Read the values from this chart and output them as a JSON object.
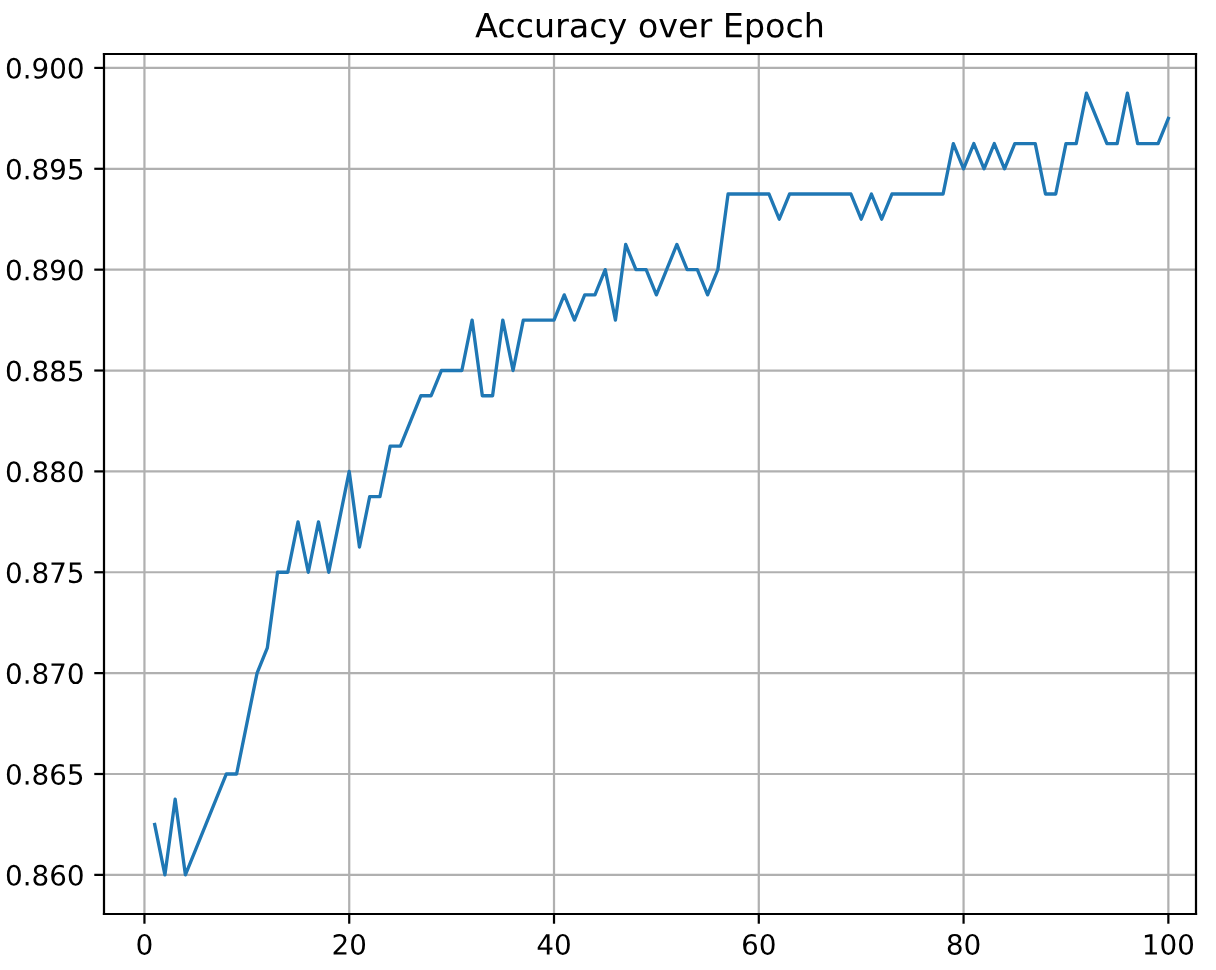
{
  "chart_data": {
    "type": "line",
    "title": "Accuracy over Epoch",
    "x": [
      1,
      2,
      3,
      4,
      5,
      6,
      7,
      8,
      9,
      10,
      11,
      12,
      13,
      14,
      15,
      16,
      17,
      18,
      19,
      20,
      21,
      22,
      23,
      24,
      25,
      26,
      27,
      28,
      29,
      30,
      31,
      32,
      33,
      34,
      35,
      36,
      37,
      38,
      39,
      40,
      41,
      42,
      43,
      44,
      45,
      46,
      47,
      48,
      49,
      50,
      51,
      52,
      53,
      54,
      55,
      56,
      57,
      58,
      59,
      60,
      61,
      62,
      63,
      64,
      65,
      66,
      67,
      68,
      69,
      70,
      71,
      72,
      73,
      74,
      75,
      76,
      77,
      78,
      79,
      80,
      81,
      82,
      83,
      84,
      85,
      86,
      87,
      88,
      89,
      90,
      91,
      92,
      93,
      94,
      95,
      96,
      97,
      98,
      99,
      100
    ],
    "series": [
      {
        "color": "#1f77b4",
        "values": [
          0.8625,
          0.86,
          0.86375,
          0.86,
          0.86125,
          0.8625,
          0.86375,
          0.865,
          0.865,
          0.8675,
          0.87,
          0.87125,
          0.875,
          0.875,
          0.8775,
          0.875,
          0.8775,
          0.875,
          0.8775,
          0.88,
          0.87625,
          0.87875,
          0.87875,
          0.88125,
          0.88125,
          0.8825,
          0.88375,
          0.88375,
          0.885,
          0.885,
          0.885,
          0.8875,
          0.88375,
          0.88375,
          0.8875,
          0.885,
          0.8875,
          0.8875,
          0.8875,
          0.8875,
          0.88875,
          0.8875,
          0.88875,
          0.88875,
          0.89,
          0.8875,
          0.89125,
          0.89,
          0.89,
          0.88875,
          0.89,
          0.89125,
          0.89,
          0.89,
          0.88875,
          0.89,
          0.89375,
          0.89375,
          0.89375,
          0.89375,
          0.89375,
          0.8925,
          0.89375,
          0.89375,
          0.89375,
          0.89375,
          0.89375,
          0.89375,
          0.89375,
          0.8925,
          0.89375,
          0.8925,
          0.89375,
          0.89375,
          0.89375,
          0.89375,
          0.89375,
          0.89375,
          0.89625,
          0.895,
          0.89625,
          0.895,
          0.89625,
          0.895,
          0.89625,
          0.89625,
          0.89625,
          0.89375,
          0.89375,
          0.89625,
          0.89625,
          0.89875,
          0.8975,
          0.89625,
          0.89625,
          0.89875,
          0.89625,
          0.89625,
          0.89625,
          0.8975
        ]
      }
    ],
    "xlim": [
      -3.95,
      102.7
    ],
    "xticks": [
      0,
      20,
      40,
      60,
      80,
      100
    ],
    "ylim": [
      0.85806,
      0.90069
    ],
    "yticks": [
      {
        "value": 0.86,
        "label": "0.860"
      },
      {
        "value": 0.865,
        "label": "0.865"
      },
      {
        "value": 0.87,
        "label": "0.870"
      },
      {
        "value": 0.875,
        "label": "0.875"
      },
      {
        "value": 0.88,
        "label": "0.880"
      },
      {
        "value": 0.885,
        "label": "0.885"
      },
      {
        "value": 0.89,
        "label": "0.890"
      },
      {
        "value": 0.895,
        "label": "0.895"
      },
      {
        "value": 0.9,
        "label": "0.900"
      }
    ],
    "grid": true
  }
}
